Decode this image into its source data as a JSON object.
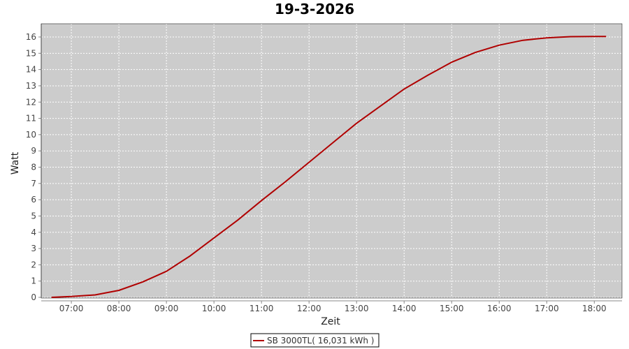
{
  "chart_data": {
    "type": "line",
    "title": "19-3-2026",
    "xlabel": "Zeit",
    "ylabel": "Watt",
    "x_ticks": [
      "07:00",
      "08:00",
      "09:00",
      "10:00",
      "11:00",
      "12:00",
      "13:00",
      "14:00",
      "15:00",
      "16:00",
      "17:00",
      "18:00"
    ],
    "y_ticks": [
      0,
      1,
      2,
      3,
      4,
      5,
      6,
      7,
      8,
      9,
      10,
      11,
      12,
      13,
      14,
      15,
      16
    ],
    "xlim": [
      "06:22",
      "18:35"
    ],
    "ylim": [
      0,
      16.8
    ],
    "grid": true,
    "legend_position": "bottom",
    "colors": {
      "series": "#b00000",
      "plot_bg": "#cccccc",
      "grid": "#ffffff"
    },
    "series": [
      {
        "name": "SB 3000TL( 16,031 kWh )",
        "x": [
          "06:35",
          "07:00",
          "07:30",
          "08:00",
          "08:30",
          "09:00",
          "09:30",
          "10:00",
          "10:30",
          "11:00",
          "11:30",
          "12:00",
          "12:30",
          "13:00",
          "13:30",
          "14:00",
          "14:30",
          "15:00",
          "15:30",
          "16:00",
          "16:30",
          "17:00",
          "17:30",
          "18:00",
          "18:15"
        ],
        "values": [
          0,
          0.05,
          0.15,
          0.43,
          0.95,
          1.6,
          2.55,
          3.65,
          4.75,
          5.95,
          7.1,
          8.3,
          9.5,
          10.7,
          11.75,
          12.8,
          13.65,
          14.45,
          15.05,
          15.5,
          15.8,
          15.95,
          16.02,
          16.03,
          16.03
        ]
      }
    ]
  }
}
